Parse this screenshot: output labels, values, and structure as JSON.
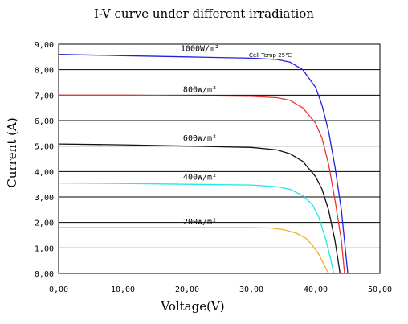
{
  "chart_data": {
    "type": "line",
    "title": "I-V curve under different irradiation",
    "xlabel": "Voltage(V)",
    "ylabel": "Current (A)",
    "xlim": [
      0,
      50
    ],
    "ylim": [
      0,
      9
    ],
    "grid": "horizontal",
    "x_ticks": [
      "0,00",
      "10,00",
      "20,00",
      "30,00",
      "40,00",
      "50,00"
    ],
    "y_ticks": [
      "0,00",
      "1,00",
      "2,00",
      "3,00",
      "4,00",
      "5,00",
      "6,00",
      "7,00",
      "8,00",
      "9,00"
    ],
    "annotation": "Cell Temp 25℃",
    "series": [
      {
        "name": "1000W/m²",
        "color": "#2222dd",
        "points": [
          [
            0,
            8.6
          ],
          [
            10,
            8.55
          ],
          [
            20,
            8.5
          ],
          [
            30,
            8.45
          ],
          [
            34,
            8.4
          ],
          [
            36,
            8.3
          ],
          [
            38,
            8.0
          ],
          [
            40,
            7.3
          ],
          [
            41,
            6.6
          ],
          [
            42,
            5.6
          ],
          [
            43,
            4.2
          ],
          [
            44,
            2.5
          ],
          [
            44.6,
            1.0
          ],
          [
            45.0,
            0
          ]
        ]
      },
      {
        "name": "800W/m²",
        "color": "#ee3333",
        "points": [
          [
            0,
            7.0
          ],
          [
            10,
            7.0
          ],
          [
            20,
            6.98
          ],
          [
            30,
            6.95
          ],
          [
            34,
            6.9
          ],
          [
            36,
            6.8
          ],
          [
            38,
            6.5
          ],
          [
            40,
            5.9
          ],
          [
            41,
            5.3
          ],
          [
            42,
            4.3
          ],
          [
            43,
            2.9
          ],
          [
            44.0,
            1.3
          ],
          [
            44.5,
            0
          ]
        ]
      },
      {
        "name": "600W/m²",
        "color": "#111111",
        "points": [
          [
            0,
            5.08
          ],
          [
            10,
            5.05
          ],
          [
            20,
            5.0
          ],
          [
            30,
            4.95
          ],
          [
            34,
            4.85
          ],
          [
            36,
            4.7
          ],
          [
            38,
            4.4
          ],
          [
            40,
            3.8
          ],
          [
            41,
            3.3
          ],
          [
            42,
            2.5
          ],
          [
            43,
            1.3
          ],
          [
            43.8,
            0
          ]
        ]
      },
      {
        "name": "400W/m²",
        "color": "#22e6f0",
        "points": [
          [
            0,
            3.55
          ],
          [
            10,
            3.53
          ],
          [
            20,
            3.5
          ],
          [
            30,
            3.47
          ],
          [
            34,
            3.4
          ],
          [
            36,
            3.3
          ],
          [
            38,
            3.05
          ],
          [
            39.5,
            2.7
          ],
          [
            40.5,
            2.2
          ],
          [
            41.5,
            1.4
          ],
          [
            42.3,
            0.6
          ],
          [
            42.8,
            0
          ]
        ]
      },
      {
        "name": "200W/m²",
        "color": "#f2b02a",
        "points": [
          [
            0,
            1.8
          ],
          [
            10,
            1.8
          ],
          [
            20,
            1.8
          ],
          [
            30,
            1.8
          ],
          [
            33,
            1.78
          ],
          [
            35,
            1.72
          ],
          [
            37,
            1.58
          ],
          [
            38.5,
            1.38
          ],
          [
            39.5,
            1.1
          ],
          [
            40.5,
            0.75
          ],
          [
            41.3,
            0.35
          ],
          [
            42.0,
            0
          ]
        ]
      }
    ]
  }
}
